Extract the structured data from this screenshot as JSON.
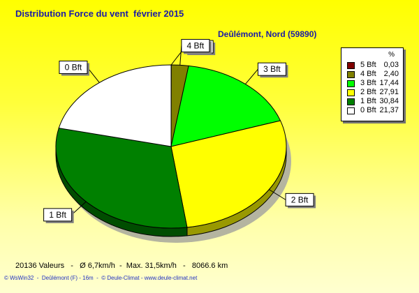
{
  "chart_data": {
    "type": "pie",
    "title": "Distribution Force du vent  février 2015",
    "subtitle": "Deûlémont, Nord (59890)",
    "unit": "%",
    "legend_position": "right",
    "slices": [
      {
        "label": "5 Bft",
        "value": 0.03,
        "value_text": "0,03",
        "color": "#800000"
      },
      {
        "label": "4 Bft",
        "value": 2.4,
        "value_text": "2,40",
        "color": "#808000"
      },
      {
        "label": "3 Bft",
        "value": 17.44,
        "value_text": "17,44",
        "color": "#00ff00"
      },
      {
        "label": "2 Bft",
        "value": 27.91,
        "value_text": "27,91",
        "color": "#ffff00"
      },
      {
        "label": "1 Bft",
        "value": 30.84,
        "value_text": "30,84",
        "color": "#008000"
      },
      {
        "label": "0 Bft",
        "value": 21.37,
        "value_text": "21,37",
        "color": "#ffffff"
      }
    ]
  },
  "footer": {
    "stats": "20136 Valeurs   -   Ø 6,7km/h  -  Max. 31,5km/h   -   8066.6 km",
    "credits": "© WsWin32  -  Deûlémont (F) - 16m  -  © Deule-Climat - www.deule-climat.net"
  }
}
